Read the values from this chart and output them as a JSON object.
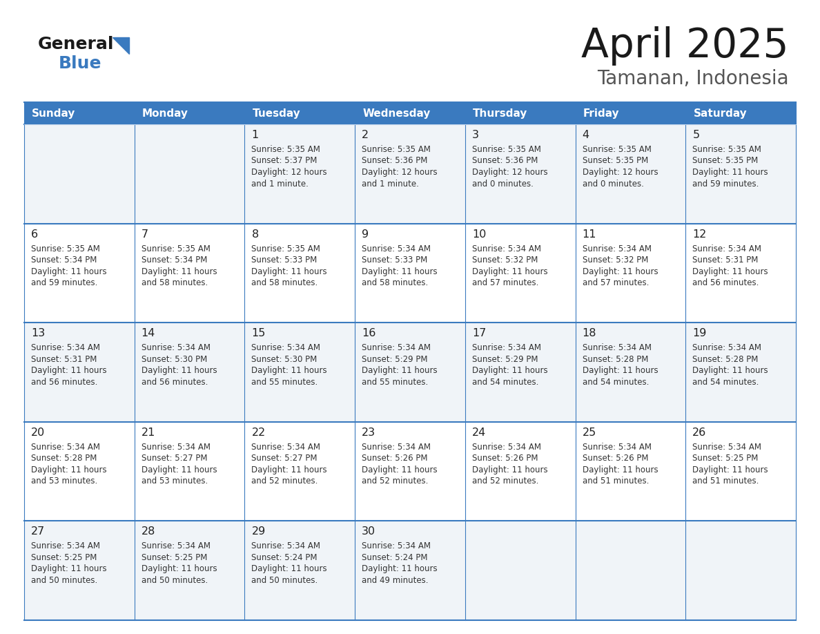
{
  "title": "April 2025",
  "subtitle": "Tamanan, Indonesia",
  "header_bg_color": "#3a7abf",
  "header_text_color": "#ffffff",
  "row_bg_even": "#f0f4f8",
  "row_bg_odd": "#ffffff",
  "border_color": "#3a7abf",
  "cell_text_color": "#333333",
  "day_num_color": "#222222",
  "days_of_week": [
    "Sunday",
    "Monday",
    "Tuesday",
    "Wednesday",
    "Thursday",
    "Friday",
    "Saturday"
  ],
  "calendar_data": [
    [
      {
        "day": "",
        "sunrise": "",
        "sunset": "",
        "daylight": ""
      },
      {
        "day": "",
        "sunrise": "",
        "sunset": "",
        "daylight": ""
      },
      {
        "day": "1",
        "sunrise": "5:35 AM",
        "sunset": "5:37 PM",
        "daylight": "12 hours\nand 1 minute."
      },
      {
        "day": "2",
        "sunrise": "5:35 AM",
        "sunset": "5:36 PM",
        "daylight": "12 hours\nand 1 minute."
      },
      {
        "day": "3",
        "sunrise": "5:35 AM",
        "sunset": "5:36 PM",
        "daylight": "12 hours\nand 0 minutes."
      },
      {
        "day": "4",
        "sunrise": "5:35 AM",
        "sunset": "5:35 PM",
        "daylight": "12 hours\nand 0 minutes."
      },
      {
        "day": "5",
        "sunrise": "5:35 AM",
        "sunset": "5:35 PM",
        "daylight": "11 hours\nand 59 minutes."
      }
    ],
    [
      {
        "day": "6",
        "sunrise": "5:35 AM",
        "sunset": "5:34 PM",
        "daylight": "11 hours\nand 59 minutes."
      },
      {
        "day": "7",
        "sunrise": "5:35 AM",
        "sunset": "5:34 PM",
        "daylight": "11 hours\nand 58 minutes."
      },
      {
        "day": "8",
        "sunrise": "5:35 AM",
        "sunset": "5:33 PM",
        "daylight": "11 hours\nand 58 minutes."
      },
      {
        "day": "9",
        "sunrise": "5:34 AM",
        "sunset": "5:33 PM",
        "daylight": "11 hours\nand 58 minutes."
      },
      {
        "day": "10",
        "sunrise": "5:34 AM",
        "sunset": "5:32 PM",
        "daylight": "11 hours\nand 57 minutes."
      },
      {
        "day": "11",
        "sunrise": "5:34 AM",
        "sunset": "5:32 PM",
        "daylight": "11 hours\nand 57 minutes."
      },
      {
        "day": "12",
        "sunrise": "5:34 AM",
        "sunset": "5:31 PM",
        "daylight": "11 hours\nand 56 minutes."
      }
    ],
    [
      {
        "day": "13",
        "sunrise": "5:34 AM",
        "sunset": "5:31 PM",
        "daylight": "11 hours\nand 56 minutes."
      },
      {
        "day": "14",
        "sunrise": "5:34 AM",
        "sunset": "5:30 PM",
        "daylight": "11 hours\nand 56 minutes."
      },
      {
        "day": "15",
        "sunrise": "5:34 AM",
        "sunset": "5:30 PM",
        "daylight": "11 hours\nand 55 minutes."
      },
      {
        "day": "16",
        "sunrise": "5:34 AM",
        "sunset": "5:29 PM",
        "daylight": "11 hours\nand 55 minutes."
      },
      {
        "day": "17",
        "sunrise": "5:34 AM",
        "sunset": "5:29 PM",
        "daylight": "11 hours\nand 54 minutes."
      },
      {
        "day": "18",
        "sunrise": "5:34 AM",
        "sunset": "5:28 PM",
        "daylight": "11 hours\nand 54 minutes."
      },
      {
        "day": "19",
        "sunrise": "5:34 AM",
        "sunset": "5:28 PM",
        "daylight": "11 hours\nand 54 minutes."
      }
    ],
    [
      {
        "day": "20",
        "sunrise": "5:34 AM",
        "sunset": "5:28 PM",
        "daylight": "11 hours\nand 53 minutes."
      },
      {
        "day": "21",
        "sunrise": "5:34 AM",
        "sunset": "5:27 PM",
        "daylight": "11 hours\nand 53 minutes."
      },
      {
        "day": "22",
        "sunrise": "5:34 AM",
        "sunset": "5:27 PM",
        "daylight": "11 hours\nand 52 minutes."
      },
      {
        "day": "23",
        "sunrise": "5:34 AM",
        "sunset": "5:26 PM",
        "daylight": "11 hours\nand 52 minutes."
      },
      {
        "day": "24",
        "sunrise": "5:34 AM",
        "sunset": "5:26 PM",
        "daylight": "11 hours\nand 52 minutes."
      },
      {
        "day": "25",
        "sunrise": "5:34 AM",
        "sunset": "5:26 PM",
        "daylight": "11 hours\nand 51 minutes."
      },
      {
        "day": "26",
        "sunrise": "5:34 AM",
        "sunset": "5:25 PM",
        "daylight": "11 hours\nand 51 minutes."
      }
    ],
    [
      {
        "day": "27",
        "sunrise": "5:34 AM",
        "sunset": "5:25 PM",
        "daylight": "11 hours\nand 50 minutes."
      },
      {
        "day": "28",
        "sunrise": "5:34 AM",
        "sunset": "5:25 PM",
        "daylight": "11 hours\nand 50 minutes."
      },
      {
        "day": "29",
        "sunrise": "5:34 AM",
        "sunset": "5:24 PM",
        "daylight": "11 hours\nand 50 minutes."
      },
      {
        "day": "30",
        "sunrise": "5:34 AM",
        "sunset": "5:24 PM",
        "daylight": "11 hours\nand 49 minutes."
      },
      {
        "day": "",
        "sunrise": "",
        "sunset": "",
        "daylight": ""
      },
      {
        "day": "",
        "sunrise": "",
        "sunset": "",
        "daylight": ""
      },
      {
        "day": "",
        "sunrise": "",
        "sunset": "",
        "daylight": ""
      }
    ]
  ],
  "logo_general_color": "#1a1a1a",
  "logo_blue_color": "#3a7abf",
  "title_color": "#1a1a1a",
  "subtitle_color": "#555555"
}
